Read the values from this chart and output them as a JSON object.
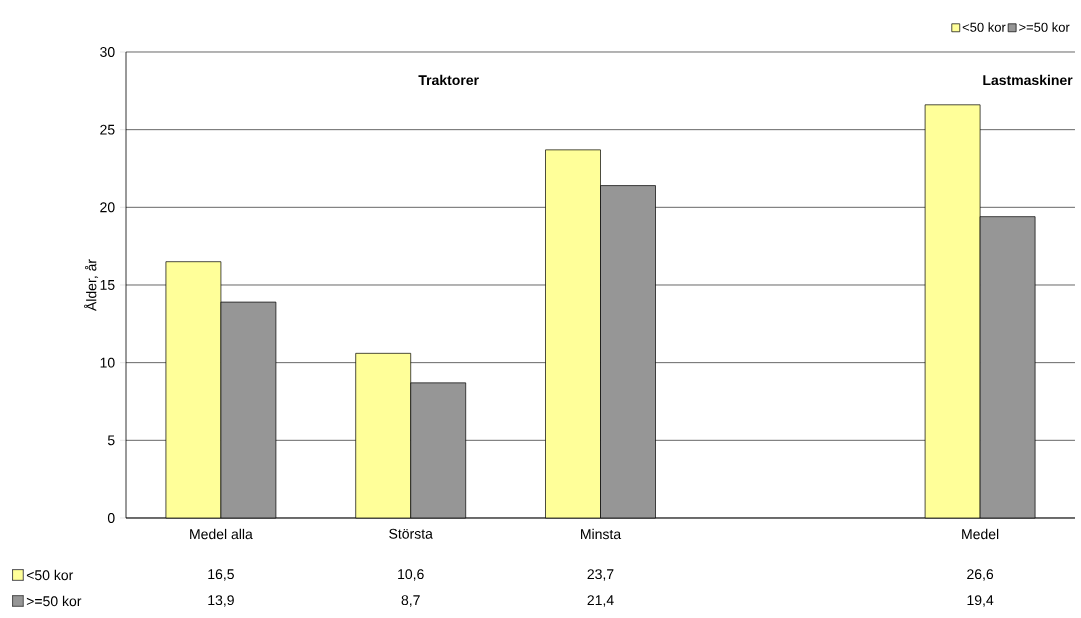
{
  "chart_data": {
    "type": "bar",
    "ylabel": "Ålder, år",
    "categories": [
      "Medel alla",
      "Största",
      "Minsta",
      null,
      "Medel"
    ],
    "series": [
      {
        "name": "<50 kor",
        "color": "#ffff99",
        "values": [
          16.5,
          10.6,
          23.7,
          null,
          26.6
        ],
        "value_labels": [
          "16,5",
          "10,6",
          "23,7",
          null,
          "26,6"
        ]
      },
      {
        "name": ">=50 kor",
        "color": "#969696",
        "values": [
          13.9,
          8.7,
          21.4,
          null,
          19.4
        ],
        "value_labels": [
          "13,9",
          "8,7",
          "21,4",
          null,
          "19,4"
        ]
      }
    ],
    "annotations": [
      "Traktorer",
      "Lastmaskiner"
    ],
    "ylim": [
      0,
      30
    ],
    "yticks": [
      0,
      5,
      10,
      15,
      20,
      25,
      30
    ],
    "grid": "y",
    "legend": "top right"
  }
}
